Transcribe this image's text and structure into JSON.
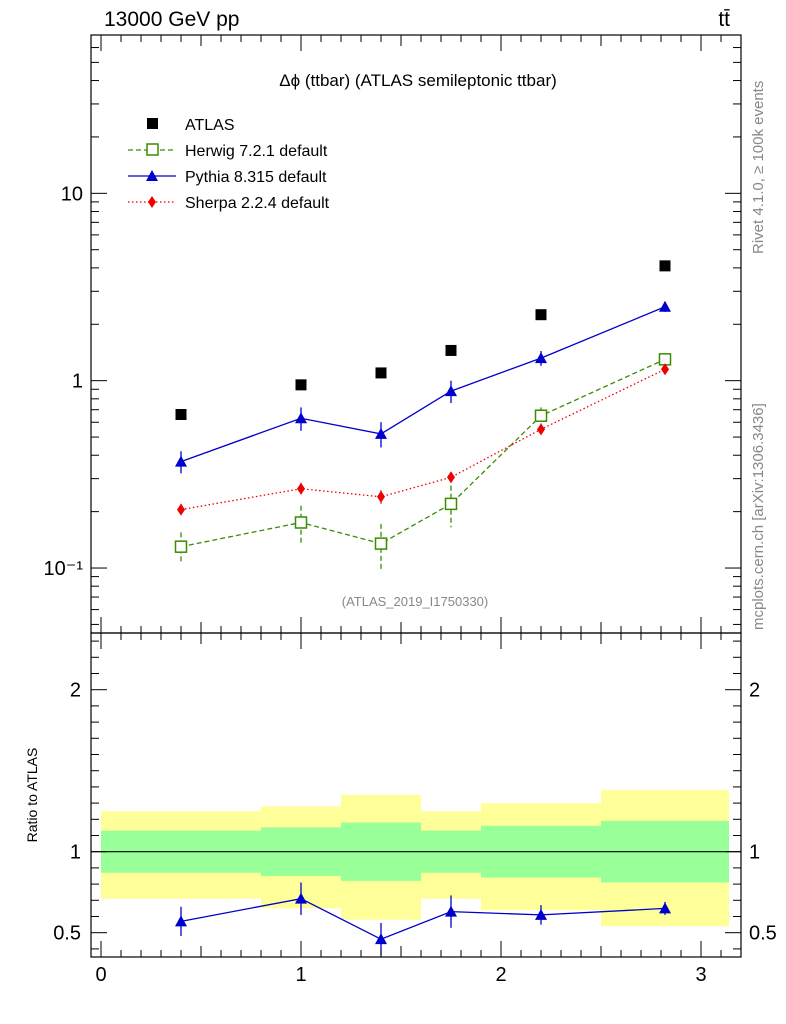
{
  "header": {
    "left": "13000 GeV pp",
    "right": "tt̄"
  },
  "side_labels": {
    "rivet": "Rivet 4.1.0, ≥ 100k events",
    "mcplots": "mcplots.cern.ch [arXiv:1306.3436]"
  },
  "colors": {
    "atlas": "#000000",
    "herwig": "#3a8c00",
    "pythia": "#0000cc",
    "sherpa": "#ee0000",
    "band_inner": "#99ff99",
    "band_outer": "#ffff99"
  },
  "chart_data": [
    {
      "type": "scatter",
      "title": "Δϕ (ttbar) (ATLAS semileptonic ttbar)",
      "analysis_tag": "(ATLAS_2019_I1750330)",
      "yscale": "log",
      "ylim": [
        0.045,
        70
      ],
      "xlim": [
        -0.05,
        3.2
      ],
      "y_ticks": [
        {
          "value": 0.1,
          "label": "10⁻¹"
        },
        {
          "value": 1,
          "label": "1"
        },
        {
          "value": 10,
          "label": "10"
        }
      ],
      "legend_position": "top-left",
      "series": [
        {
          "name": "ATLAS",
          "marker": "square",
          "x": [
            0.4,
            1.0,
            1.4,
            1.75,
            2.2,
            2.82
          ],
          "values": [
            0.66,
            0.95,
            1.1,
            1.45,
            2.25,
            4.1
          ],
          "errors": [
            0,
            0,
            0,
            0,
            0,
            0
          ]
        },
        {
          "name": "Herwig 7.2.1 default",
          "marker": "open-square",
          "line": "dashed",
          "x": [
            0.4,
            1.0,
            1.4,
            1.75,
            2.2,
            2.82
          ],
          "values": [
            0.13,
            0.175,
            0.135,
            0.22,
            0.65,
            1.3
          ],
          "errors": [
            0.025,
            0.04,
            0.037,
            0.055,
            0.07,
            0.07
          ]
        },
        {
          "name": "Pythia 8.315 default",
          "marker": "triangle",
          "line": "solid",
          "x": [
            0.4,
            1.0,
            1.4,
            1.75,
            2.2,
            2.82
          ],
          "values": [
            0.37,
            0.63,
            0.52,
            0.88,
            1.32,
            2.48
          ],
          "errors": [
            0.05,
            0.09,
            0.08,
            0.12,
            0.12,
            0.15
          ]
        },
        {
          "name": "Sherpa 2.2.4 default",
          "marker": "diamond",
          "line": "dotted",
          "x": [
            0.4,
            1.0,
            1.4,
            1.75,
            2.2,
            2.82
          ],
          "values": [
            0.205,
            0.265,
            0.24,
            0.305,
            0.55,
            1.15
          ],
          "errors": [
            0.015,
            0.02,
            0.02,
            0.02,
            0.025,
            0.05
          ]
        }
      ]
    },
    {
      "type": "line",
      "ylabel": "Ratio to ATLAS",
      "xlabel": "",
      "ylim": [
        0.35,
        2.35
      ],
      "xlim": [
        -0.05,
        3.2
      ],
      "x_ticks": [
        0,
        1,
        2,
        3
      ],
      "y_ticks": [
        0.5,
        1,
        2
      ],
      "bins": [
        {
          "lo": 0.0,
          "hi": 0.8,
          "inner": [
            0.87,
            1.13
          ],
          "outer": [
            0.71,
            1.25
          ]
        },
        {
          "lo": 0.8,
          "hi": 1.2,
          "inner": [
            0.85,
            1.15
          ],
          "outer": [
            0.65,
            1.28
          ]
        },
        {
          "lo": 1.2,
          "hi": 1.6,
          "inner": [
            0.82,
            1.18
          ],
          "outer": [
            0.58,
            1.35
          ]
        },
        {
          "lo": 1.6,
          "hi": 1.9,
          "inner": [
            0.87,
            1.13
          ],
          "outer": [
            0.71,
            1.25
          ]
        },
        {
          "lo": 1.9,
          "hi": 2.5,
          "inner": [
            0.84,
            1.16
          ],
          "outer": [
            0.64,
            1.3
          ]
        },
        {
          "lo": 2.5,
          "hi": 3.14,
          "inner": [
            0.81,
            1.19
          ],
          "outer": [
            0.54,
            1.38
          ]
        }
      ],
      "series": [
        {
          "name": "Pythia 8.315 default",
          "x": [
            0.4,
            1.0,
            1.4,
            1.75,
            2.2,
            2.82
          ],
          "values": [
            0.57,
            0.71,
            0.46,
            0.63,
            0.61,
            0.65
          ],
          "errors": [
            0.09,
            0.1,
            0.1,
            0.1,
            0.06,
            0.04
          ]
        }
      ]
    }
  ]
}
